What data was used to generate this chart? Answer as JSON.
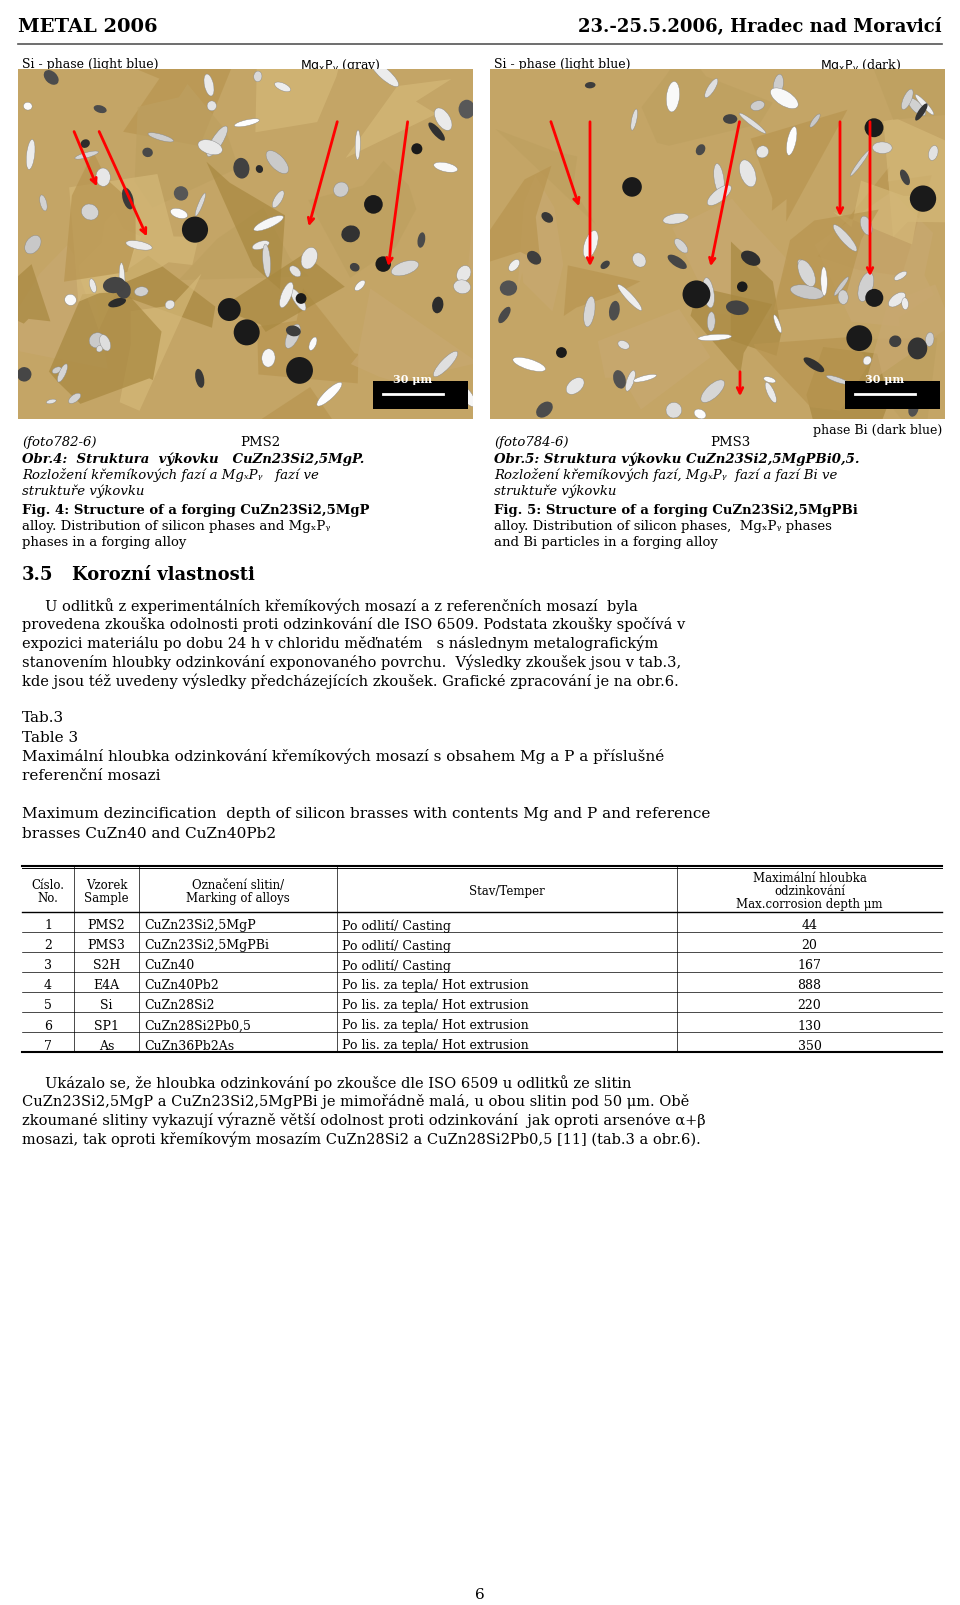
{
  "header_left": "METAL 2006",
  "header_right": "23.-25.5.2006, Hradec nad Moravicí",
  "fig4_labels_left": "Si - phase (light blue)",
  "fig4_labels_right": "MgₓPᵧ (gray)",
  "fig5_labels_left": "Si - phase (light blue)",
  "fig5_labels_right": "MgₓPᵧ (dark)",
  "fig5_label_bi": "phase Bi (dark blue)",
  "fig4_caption_photo": "(foto782-6)",
  "fig4_caption_pms": "PMS2",
  "fig4_caption_line1": "Obr.4:  Struktura  výkovku   CuZn23Si2,5MgP.",
  "fig4_caption_line2": "Rozložení křemíkových fazí a MgₓPᵧ   fazí ve",
  "fig4_caption_line3": "struktuře výkovku",
  "fig4_caption_line4_en": "Fig. 4: Structure of a forging CuZn23Si2,5MgP",
  "fig4_caption_line5_en": "alloy. Distribution of silicon phases and MgₓPᵧ",
  "fig4_caption_line6_en": "phases in a forging alloy",
  "fig5_caption_photo": "(foto784-6)",
  "fig5_caption_pms": "PMS3",
  "fig5_caption_line1": "Obr.5: Struktura výkovku CuZn23Si2,5MgPBi0,5.",
  "fig5_caption_line2": "Rozložení křemíkových fazí, MgₓPᵧ  fazí a fazí Bi ve",
  "fig5_caption_line3": "struktuře výkovku",
  "fig5_caption_line4_en": "Fig. 5: Structure of a forging CuZn23Si2,5MgPBi",
  "fig5_caption_line5_en": "alloy. Distribution of silicon phases,  MgₓPᵧ phases",
  "fig5_caption_line6_en": "and Bi particles in a forging alloy",
  "section_num": "3.5",
  "section_title": "Korozní vlastnosti",
  "para1_lines": [
    "     U odlitků z experimentálních křemíkových mosazí a z referenčních mosazí  byla",
    "provedena zkouška odolnosti proti odzinkování dle ISO 6509. Podstata zkoušky spočívá v",
    "expozici materiálu po dobu 24 h v chloridu měďnatém   s následnym metalografickým",
    "stanovením hloubky odzinkování exponovaného povrchu.  Výsledky zkoušek jsou v tab.3,",
    "kde jsou též uvedeny výsledky předcházejících zkoušek. Grafické zpracování je na obr.6."
  ],
  "tab_ref": "Tab.3",
  "tab_title": "Table 3",
  "tab_title_cz_lines": [
    "Maximální hloubka odzinkování křemíkových mosazí s obsahem Mg a P a příslušné",
    "referenční mosazi"
  ],
  "tab_title_en_lines": [
    "Maximum dezincification  depth of silicon brasses with contents Mg and P and reference",
    "brasses CuZn40 and CuZn40Pb2"
  ],
  "table_headers": [
    "Císlo.\nNo.",
    "Vzorek\nSample",
    "Označení slitin/\nMarking of alloys",
    "Stav/Temper",
    "Maximální hloubka\nodzinkování\nMax.corrosion depth μm"
  ],
  "table_rows": [
    [
      "1",
      "PMS2",
      "CuZn23Si2,5MgP",
      "Po odlití/ Casting",
      "44"
    ],
    [
      "2",
      "PMS3",
      "CuZn23Si2,5MgPBi",
      "Po odlití/ Casting",
      "20"
    ],
    [
      "3",
      "S2H",
      "CuZn40",
      "Po odlití/ Casting",
      "167"
    ],
    [
      "4",
      "E4A",
      "CuZn40Pb2",
      "Po lis. za tepla/ Hot extrusion",
      "888"
    ],
    [
      "5",
      "Si",
      "CuZn28Si2",
      "Po lis. za tepla/ Hot extrusion",
      "220"
    ],
    [
      "6",
      "SP1",
      "CuZn28Si2Pb0,5",
      "Po lis. za tepla/ Hot extrusion",
      "130"
    ],
    [
      "7",
      "As",
      "CuZn36Pb2As",
      "Po lis. za tepla/ Hot extrusion",
      "350"
    ]
  ],
  "para2_lines": [
    "     Ukázalo se, že hloubka odzinkování po zkoušce dle ISO 6509 u odlitků ze slitin",
    "CuZn23Si2,5MgP a CuZn23Si2,5MgPBi je mimořádně malá, u obou slitin pod 50 μm. Obě",
    "zkoumané slitiny vykazují výrazně větší odolnost proti odzinkování  jak oproti arsenóve α+β",
    "mosazi, tak oproti křemíkovým mosazím CuZn28Si2 a CuZn28Si2Pb0,5 [11] (tab.3 a obr.6)."
  ],
  "page_num": "6",
  "bg_color": "#ffffff",
  "text_color": "#000000"
}
